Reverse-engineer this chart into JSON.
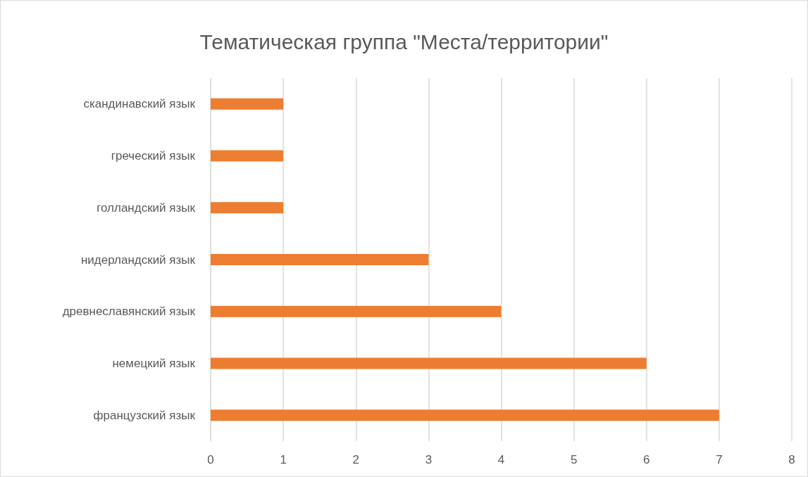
{
  "chart_data": {
    "type": "bar",
    "title": "Тематическая группа \"Места/территории\"",
    "orientation": "horizontal",
    "categories": [
      "скандинавский язык",
      "греческий язык",
      "голландский язык",
      "нидерландский язык",
      "древнеславянский язык",
      "немецкий язык",
      "французский язык"
    ],
    "values": [
      1,
      1,
      1,
      3,
      4,
      6,
      7
    ],
    "color": "#ed7d31",
    "xlim": [
      0,
      8
    ],
    "xticks": [
      0,
      1,
      2,
      3,
      4,
      5,
      6,
      7,
      8
    ],
    "grid": "x"
  }
}
